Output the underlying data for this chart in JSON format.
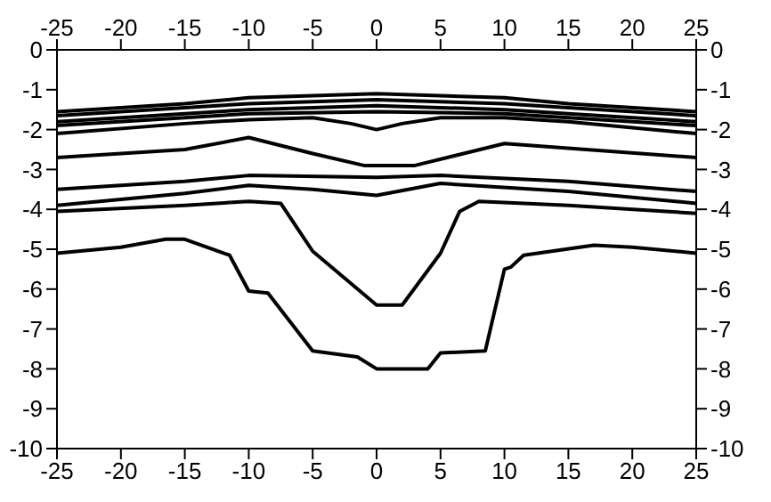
{
  "chart_data": {
    "type": "line",
    "xlim": [
      -25,
      25
    ],
    "xticks": [
      -25,
      -20,
      -15,
      -10,
      -5,
      0,
      5,
      10,
      15,
      20,
      25
    ],
    "x2lim": [
      -25,
      25
    ],
    "x2ticks": [
      -25,
      -20,
      -15,
      -10,
      -5,
      0,
      5,
      10,
      15,
      20,
      25
    ],
    "ylim": [
      -10,
      0
    ],
    "yticks": [
      0,
      -1,
      -2,
      -3,
      -4,
      -5,
      -6,
      -7,
      -8,
      -9,
      -10
    ],
    "y2lim": [
      -10,
      0
    ],
    "y2ticks": [
      0,
      -1,
      -2,
      -3,
      -4,
      -5,
      -6,
      -7,
      -8,
      -9,
      -10
    ],
    "marker": "none",
    "line_style": "solid",
    "grid": false,
    "series": [
      {
        "color": "#000000",
        "x": [
          -25,
          -15,
          -10,
          0,
          10,
          15,
          25
        ],
        "values": [
          -1.55,
          -1.35,
          -1.2,
          -1.1,
          -1.2,
          -1.35,
          -1.55
        ]
      },
      {
        "color": "#000000",
        "x": [
          -25,
          -15,
          -10,
          0,
          10,
          15,
          25
        ],
        "values": [
          -1.65,
          -1.45,
          -1.35,
          -1.25,
          -1.35,
          -1.45,
          -1.65
        ]
      },
      {
        "color": "#000000",
        "x": [
          -25,
          -15,
          -10,
          0,
          10,
          15,
          25
        ],
        "values": [
          -1.8,
          -1.6,
          -1.5,
          -1.4,
          -1.5,
          -1.6,
          -1.8
        ]
      },
      {
        "color": "#000000",
        "x": [
          -25,
          -15,
          -10,
          0,
          10,
          15,
          25
        ],
        "values": [
          -1.9,
          -1.7,
          -1.6,
          -1.55,
          -1.6,
          -1.7,
          -1.9
        ]
      },
      {
        "color": "#000000",
        "x": [
          -25,
          -15,
          -10,
          -5,
          -2,
          0,
          2,
          5,
          10,
          15,
          25
        ],
        "values": [
          -2.1,
          -1.85,
          -1.75,
          -1.7,
          -1.85,
          -2.0,
          -1.85,
          -1.7,
          -1.7,
          -1.8,
          -2.1
        ]
      },
      {
        "color": "#000000",
        "x": [
          -25,
          -15,
          -10,
          -5,
          -1,
          3,
          10,
          25
        ],
        "values": [
          -2.7,
          -2.5,
          -2.2,
          -2.6,
          -2.9,
          -2.9,
          -2.35,
          -2.7
        ]
      },
      {
        "color": "#000000",
        "x": [
          -25,
          -15,
          -10,
          0,
          5,
          15,
          25
        ],
        "values": [
          -3.5,
          -3.3,
          -3.15,
          -3.2,
          -3.15,
          -3.3,
          -3.55
        ]
      },
      {
        "color": "#000000",
        "x": [
          -25,
          -15,
          -10,
          -5,
          0,
          5,
          15,
          25
        ],
        "values": [
          -3.9,
          -3.6,
          -3.4,
          -3.5,
          -3.65,
          -3.35,
          -3.55,
          -3.85
        ]
      },
      {
        "color": "#000000",
        "x": [
          -25,
          -15,
          -10,
          -7.5,
          -5,
          0,
          2,
          5,
          6.5,
          8,
          15,
          25
        ],
        "values": [
          -4.05,
          -3.9,
          -3.8,
          -3.85,
          -5.05,
          -6.4,
          -6.4,
          -5.1,
          -4.05,
          -3.8,
          -3.9,
          -4.1
        ]
      },
      {
        "color": "#000000",
        "x": [
          -25,
          -20,
          -16.5,
          -15,
          -11.5,
          -10,
          -8.5,
          -5,
          -1.5,
          0,
          4,
          5,
          8.5,
          10,
          10.5,
          11.5,
          17,
          20,
          25
        ],
        "values": [
          -5.1,
          -4.95,
          -4.75,
          -4.75,
          -5.15,
          -6.05,
          -6.1,
          -7.55,
          -7.7,
          -8.0,
          -8.0,
          -7.6,
          -7.55,
          -5.5,
          -5.45,
          -5.15,
          -4.9,
          -4.95,
          -5.1
        ]
      }
    ]
  }
}
